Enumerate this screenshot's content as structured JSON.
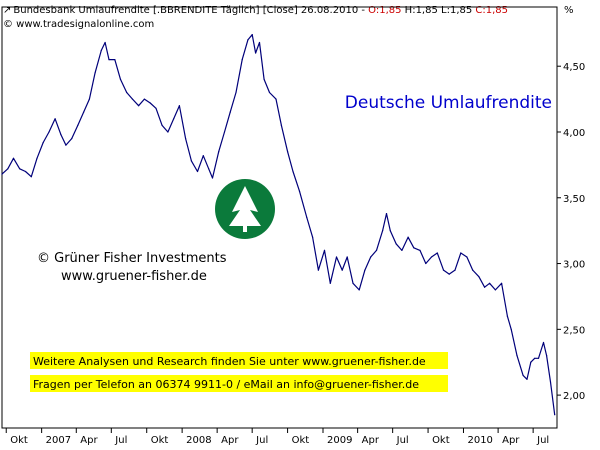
{
  "header": {
    "instrument": "Bundesbank Umlaufrendite [.BBRENDITE  Täglich] [Close] 26.08.2010 - ",
    "o_label": "O:1,85",
    "hl_label": " H:1,85 L:1,85 ",
    "c_label": "C:1,85",
    "source": "© www.tradesignalonline.com",
    "unit": "%"
  },
  "overlay": {
    "title": "Deutsche Umlaufrendite",
    "copyright": "© Grüner Fisher Investments",
    "website": "www.gruener-fisher.de",
    "note_line1": "Weitere Analysen und Research finden Sie unter www.gruener-fisher.de",
    "note_line2": "Fragen per Telefon an 06374 9911-0 / eMail an info@gruener-fisher.de"
  },
  "colors": {
    "line": "#00007a",
    "title": "#0000cc",
    "highlight": "#ffff00",
    "logo": "#0b7a3b",
    "red": "#cc0000"
  },
  "chart_data": {
    "type": "line",
    "title": "Deutsche Umlaufrendite",
    "ylabel": "%",
    "ylim": [
      1.75,
      4.95
    ],
    "xlim": [
      "2006-09-20",
      "2010-09-01"
    ],
    "y_ticks": [
      {
        "value": 2.0,
        "label": "2,00"
      },
      {
        "value": 2.5,
        "label": "2,50"
      },
      {
        "value": 3.0,
        "label": "3,00"
      },
      {
        "value": 3.5,
        "label": "3,50"
      },
      {
        "value": 4.0,
        "label": "4,00"
      },
      {
        "value": 4.5,
        "label": "4,50"
      }
    ],
    "x_ticks": [
      {
        "date": "2006-10-01",
        "label": "Okt"
      },
      {
        "date": "2007-01-01",
        "label": "2007"
      },
      {
        "date": "2007-04-01",
        "label": "Apr"
      },
      {
        "date": "2007-07-01",
        "label": "Jul"
      },
      {
        "date": "2007-10-01",
        "label": "Okt"
      },
      {
        "date": "2008-01-01",
        "label": "2008"
      },
      {
        "date": "2008-04-01",
        "label": "Apr"
      },
      {
        "date": "2008-07-01",
        "label": "Jul"
      },
      {
        "date": "2008-10-01",
        "label": "Okt"
      },
      {
        "date": "2009-01-01",
        "label": "2009"
      },
      {
        "date": "2009-04-01",
        "label": "Apr"
      },
      {
        "date": "2009-07-01",
        "label": "Jul"
      },
      {
        "date": "2009-10-01",
        "label": "Okt"
      },
      {
        "date": "2010-01-01",
        "label": "2010"
      },
      {
        "date": "2010-04-01",
        "label": "Apr"
      },
      {
        "date": "2010-07-01",
        "label": "Jul"
      }
    ],
    "series": [
      {
        "values": [
          [
            "2006-09-20",
            3.68
          ],
          [
            "2006-10-05",
            3.72
          ],
          [
            "2006-10-20",
            3.8
          ],
          [
            "2006-11-05",
            3.72
          ],
          [
            "2006-11-20",
            3.7
          ],
          [
            "2006-12-05",
            3.66
          ],
          [
            "2006-12-20",
            3.8
          ],
          [
            "2007-01-05",
            3.92
          ],
          [
            "2007-01-20",
            4.0
          ],
          [
            "2007-02-05",
            4.1
          ],
          [
            "2007-02-20",
            3.98
          ],
          [
            "2007-03-05",
            3.9
          ],
          [
            "2007-03-20",
            3.95
          ],
          [
            "2007-04-05",
            4.05
          ],
          [
            "2007-04-20",
            4.15
          ],
          [
            "2007-05-05",
            4.25
          ],
          [
            "2007-05-20",
            4.45
          ],
          [
            "2007-06-05",
            4.62
          ],
          [
            "2007-06-15",
            4.68
          ],
          [
            "2007-06-25",
            4.55
          ],
          [
            "2007-07-10",
            4.55
          ],
          [
            "2007-07-25",
            4.4
          ],
          [
            "2007-08-10",
            4.3
          ],
          [
            "2007-08-25",
            4.25
          ],
          [
            "2007-09-10",
            4.2
          ],
          [
            "2007-09-25",
            4.25
          ],
          [
            "2007-10-10",
            4.22
          ],
          [
            "2007-10-25",
            4.18
          ],
          [
            "2007-11-10",
            4.05
          ],
          [
            "2007-11-25",
            4.0
          ],
          [
            "2007-12-10",
            4.1
          ],
          [
            "2007-12-25",
            4.2
          ],
          [
            "2008-01-10",
            3.95
          ],
          [
            "2008-01-25",
            3.78
          ],
          [
            "2008-02-10",
            3.7
          ],
          [
            "2008-02-25",
            3.82
          ],
          [
            "2008-03-10",
            3.72
          ],
          [
            "2008-03-20",
            3.65
          ],
          [
            "2008-04-05",
            3.85
          ],
          [
            "2008-04-20",
            4.0
          ],
          [
            "2008-05-05",
            4.15
          ],
          [
            "2008-05-20",
            4.3
          ],
          [
            "2008-06-05",
            4.55
          ],
          [
            "2008-06-20",
            4.7
          ],
          [
            "2008-07-01",
            4.74
          ],
          [
            "2008-07-10",
            4.6
          ],
          [
            "2008-07-20",
            4.68
          ],
          [
            "2008-08-01",
            4.4
          ],
          [
            "2008-08-15",
            4.3
          ],
          [
            "2008-09-01",
            4.25
          ],
          [
            "2008-09-15",
            4.05
          ],
          [
            "2008-10-01",
            3.85
          ],
          [
            "2008-10-15",
            3.7
          ],
          [
            "2008-11-01",
            3.55
          ],
          [
            "2008-11-20",
            3.35
          ],
          [
            "2008-12-05",
            3.2
          ],
          [
            "2008-12-20",
            2.95
          ],
          [
            "2009-01-05",
            3.1
          ],
          [
            "2009-01-20",
            2.85
          ],
          [
            "2009-02-05",
            3.05
          ],
          [
            "2009-02-20",
            2.95
          ],
          [
            "2009-03-05",
            3.05
          ],
          [
            "2009-03-20",
            2.85
          ],
          [
            "2009-04-05",
            2.8
          ],
          [
            "2009-04-20",
            2.95
          ],
          [
            "2009-05-05",
            3.05
          ],
          [
            "2009-05-20",
            3.1
          ],
          [
            "2009-06-05",
            3.25
          ],
          [
            "2009-06-15",
            3.38
          ],
          [
            "2009-06-25",
            3.25
          ],
          [
            "2009-07-10",
            3.15
          ],
          [
            "2009-07-25",
            3.1
          ],
          [
            "2009-08-10",
            3.2
          ],
          [
            "2009-08-25",
            3.12
          ],
          [
            "2009-09-10",
            3.1
          ],
          [
            "2009-09-25",
            3.0
          ],
          [
            "2009-10-10",
            3.05
          ],
          [
            "2009-10-25",
            3.08
          ],
          [
            "2009-11-10",
            2.95
          ],
          [
            "2009-11-25",
            2.92
          ],
          [
            "2009-12-10",
            2.95
          ],
          [
            "2009-12-25",
            3.08
          ],
          [
            "2010-01-10",
            3.05
          ],
          [
            "2010-01-25",
            2.95
          ],
          [
            "2010-02-10",
            2.9
          ],
          [
            "2010-02-25",
            2.82
          ],
          [
            "2010-03-10",
            2.85
          ],
          [
            "2010-03-25",
            2.8
          ],
          [
            "2010-04-10",
            2.85
          ],
          [
            "2010-04-25",
            2.6
          ],
          [
            "2010-05-05",
            2.5
          ],
          [
            "2010-05-20",
            2.3
          ],
          [
            "2010-06-05",
            2.15
          ],
          [
            "2010-06-15",
            2.12
          ],
          [
            "2010-06-25",
            2.25
          ],
          [
            "2010-07-05",
            2.28
          ],
          [
            "2010-07-15",
            2.28
          ],
          [
            "2010-07-28",
            2.4
          ],
          [
            "2010-08-05",
            2.3
          ],
          [
            "2010-08-15",
            2.1
          ],
          [
            "2010-08-26",
            1.85
          ]
        ]
      }
    ]
  }
}
